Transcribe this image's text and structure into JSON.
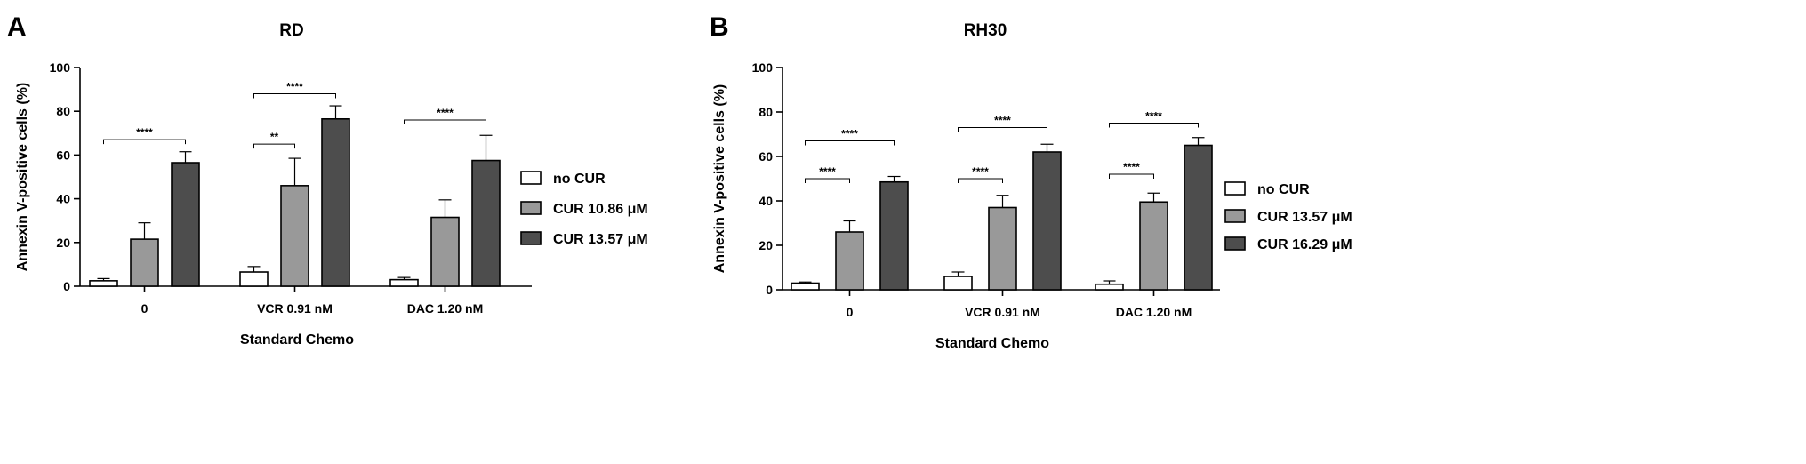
{
  "chart_data": [
    {
      "type": "bar",
      "panel_label": "A",
      "title": "RD",
      "xlabel": "Standard Chemo",
      "ylabel": "Annexin V-positive cells (%)",
      "ylim": [
        0,
        100
      ],
      "yticks": [
        0,
        20,
        40,
        60,
        80,
        100
      ],
      "categories": [
        "0",
        "VCR 0.91 nM",
        "DAC 1.20 nM"
      ],
      "legend_position": "right",
      "series": [
        {
          "name": "no CUR",
          "color": "#ffffff",
          "values": [
            2.5,
            6.5,
            3.0
          ],
          "errors": [
            1.0,
            2.5,
            1.0
          ]
        },
        {
          "name": "CUR 10.86 μM",
          "color": "#999999",
          "values": [
            21.5,
            46.0,
            31.5
          ],
          "errors": [
            7.5,
            12.5,
            8.0
          ]
        },
        {
          "name": "CUR 13.57 μM",
          "color": "#4d4d4d",
          "values": [
            56.5,
            76.5,
            57.5
          ],
          "errors": [
            5.0,
            6.0,
            11.5
          ]
        }
      ],
      "significance": [
        {
          "category": 0,
          "from": 0,
          "to": 2,
          "y": 67,
          "label": "****"
        },
        {
          "category": 1,
          "from": 0,
          "to": 1,
          "y": 65,
          "label": "**"
        },
        {
          "category": 1,
          "from": 0,
          "to": 2,
          "y": 88,
          "label": "****"
        },
        {
          "category": 2,
          "from": 0,
          "to": 2,
          "y": 76,
          "label": "****"
        }
      ]
    },
    {
      "type": "bar",
      "panel_label": "B",
      "title": "RH30",
      "xlabel": "Standard Chemo",
      "ylabel": "Annexin V-positive cells (%)",
      "ylim": [
        0,
        100
      ],
      "yticks": [
        0,
        20,
        40,
        60,
        80,
        100
      ],
      "categories": [
        "0",
        "VCR 0.91 nM",
        "DAC 1.20 nM"
      ],
      "legend_position": "right",
      "series": [
        {
          "name": "no CUR",
          "color": "#ffffff",
          "values": [
            3.0,
            6.0,
            2.5
          ],
          "errors": [
            0.5,
            2.0,
            1.5
          ]
        },
        {
          "name": "CUR 13.57 μM",
          "color": "#999999",
          "values": [
            26.0,
            37.0,
            39.5
          ],
          "errors": [
            5.0,
            5.5,
            4.0
          ]
        },
        {
          "name": "CUR 16.29 μM",
          "color": "#4d4d4d",
          "values": [
            48.5,
            62.0,
            65.0
          ],
          "errors": [
            2.5,
            3.5,
            3.5
          ]
        }
      ],
      "significance": [
        {
          "category": 0,
          "from": 0,
          "to": 1,
          "y": 50,
          "label": "****"
        },
        {
          "category": 0,
          "from": 0,
          "to": 2,
          "y": 67,
          "label": "****"
        },
        {
          "category": 1,
          "from": 0,
          "to": 1,
          "y": 50,
          "label": "****"
        },
        {
          "category": 1,
          "from": 0,
          "to": 2,
          "y": 73,
          "label": "****"
        },
        {
          "category": 2,
          "from": 0,
          "to": 1,
          "y": 52,
          "label": "****"
        },
        {
          "category": 2,
          "from": 0,
          "to": 2,
          "y": 75,
          "label": "****"
        }
      ]
    }
  ]
}
